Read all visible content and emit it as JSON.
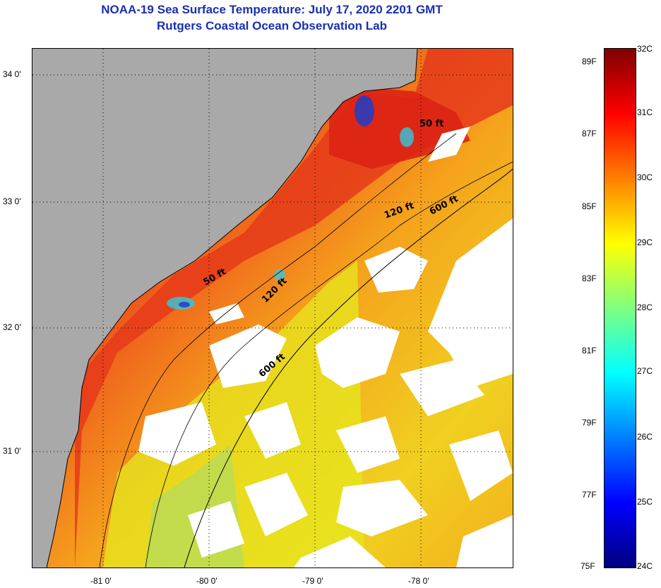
{
  "header": {
    "title_line1": "NOAA-19 Sea Surface Temperature:  July 17, 2020 2201 GMT",
    "title_line2": "Rutgers Coastal Ocean Observation Lab"
  },
  "map": {
    "lat_labels": [
      "34 0'",
      "33 0'",
      "32 0'",
      "31 0'"
    ],
    "lon_labels": [
      "-81 0'",
      "-80 0'",
      "-79 0'",
      "-78 0'"
    ],
    "contour_labels": [
      "50 ft",
      "120 ft",
      "600 ft",
      "50 ft",
      "120 ft",
      "600 ft"
    ],
    "colors": {
      "land": "#a9a9a9",
      "cloud": "#ffffff",
      "warm": "#e8401c",
      "hot": "#d81e14",
      "mid": "#f47a18",
      "cool": "#f2c41a",
      "yellow": "#e9f01e",
      "green": "#9bd86a",
      "cyan": "#33c8e0",
      "blue": "#1f3ec8"
    }
  },
  "colorbar": {
    "celsius_labels": [
      "32C",
      "31C",
      "30C",
      "29C",
      "28C",
      "27C",
      "26C",
      "25C",
      "24C"
    ],
    "fahrenheit_labels": [
      "89F",
      "87F",
      "85F",
      "83F",
      "81F",
      "79F",
      "77F",
      "75F"
    ],
    "gradient": [
      "#00007f",
      "#0000ff",
      "#007fff",
      "#00ffff",
      "#7fff7f",
      "#ffff00",
      "#ff7f00",
      "#ff0000",
      "#7f0000"
    ]
  }
}
